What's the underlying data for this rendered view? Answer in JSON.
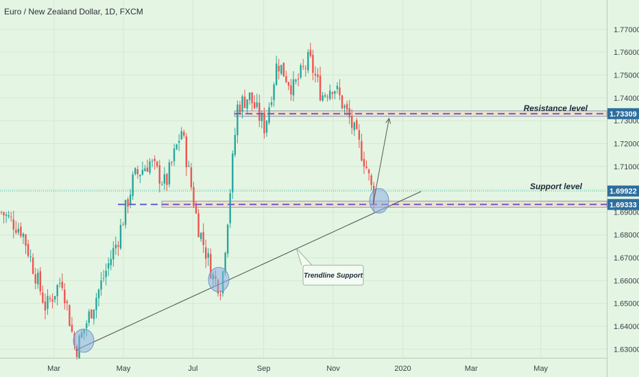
{
  "header": {
    "title": "Euro / New Zealand Dollar, 1D, FXCM"
  },
  "colors": {
    "background": "#e4f5e3",
    "up_candle": "#26a69a",
    "down_candle": "#ef5350",
    "resistance_line": "#6a5acd",
    "zone_fill": "#f0d8c8",
    "trendline": "#555555",
    "highlight_circle": "#8aaee0",
    "badge": "#2e6e9e",
    "current_price_line": "#26a69a"
  },
  "chart_data": {
    "type": "candlestick",
    "symbol": "EURNZD",
    "timeframe": "1D",
    "source": "FXCM",
    "x_labels": [
      "Mar",
      "May",
      "Jul",
      "Sep",
      "Nov",
      "2020",
      "Mar",
      "May"
    ],
    "y_ticks": [
      "1.77000",
      "1.76000",
      "1.75000",
      "1.74000",
      "1.73000",
      "1.72000",
      "1.71000",
      "1.70000",
      "1.69000",
      "1.68000",
      "1.67000",
      "1.66000",
      "1.65000",
      "1.64000",
      "1.63000"
    ],
    "ylim": [
      1.6235,
      1.7815
    ],
    "series": [
      {
        "name": "EURNZD daily closes",
        "x": [
          "2019-01-14",
          "2019-02-01",
          "2019-02-22",
          "2019-03-08",
          "2019-03-20",
          "2019-04-08",
          "2019-04-26",
          "2019-05-10",
          "2019-05-24",
          "2019-06-07",
          "2019-06-21",
          "2019-07-05",
          "2019-07-19",
          "2019-07-26",
          "2019-08-09",
          "2019-08-19",
          "2019-09-02",
          "2019-09-13",
          "2019-09-27",
          "2019-10-11",
          "2019-10-22",
          "2019-11-01",
          "2019-11-15",
          "2019-11-29",
          "2019-12-06"
        ],
        "values": [
          1.69,
          1.682,
          1.648,
          1.661,
          1.629,
          1.654,
          1.678,
          1.705,
          1.712,
          1.702,
          1.726,
          1.685,
          1.661,
          1.657,
          1.736,
          1.741,
          1.727,
          1.756,
          1.744,
          1.757,
          1.741,
          1.746,
          1.731,
          1.712,
          1.697
        ]
      }
    ],
    "price_labels": {
      "resistance": "1.73309",
      "current": "1.69922",
      "support": "1.69333"
    },
    "levels": {
      "resistance": 1.73309,
      "current": 1.69922,
      "support": 1.69333
    },
    "trendline": {
      "from": [
        "2019-03-20",
        1.6295
      ],
      "to": [
        "2020-01-17",
        1.699
      ]
    },
    "projection_arrow": {
      "from": [
        "2019-12-06",
        1.6935
      ],
      "to": [
        "2019-12-20",
        1.731
      ]
    },
    "annotations": {
      "resistance_label": "Resistance level",
      "support_label": "Support level",
      "trendline_label": "Trendline Support"
    }
  }
}
